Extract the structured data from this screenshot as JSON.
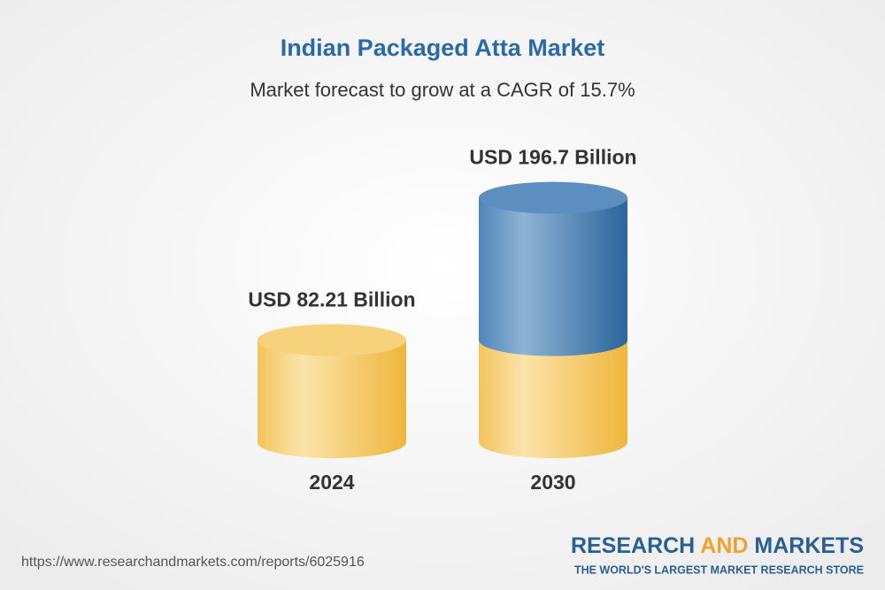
{
  "chart_data": {
    "type": "cylinder",
    "title": "Indian Packaged Atta Market",
    "subtitle": "Market forecast to grow at a CAGR of 15.7%",
    "categories": [
      "2024",
      "2030"
    ],
    "values": [
      82.21,
      196.7
    ],
    "value_labels": [
      "USD 82.21 Billion",
      "USD 196.7 Billion"
    ],
    "colors": [
      "#f0bb45",
      "#2d6aa2"
    ]
  },
  "footer": {
    "url": "https://www.researchandmarkets.com/reports/6025916",
    "logo": {
      "words": [
        "RESEARCH",
        "AND",
        "MARKETS"
      ],
      "tagline": "THE WORLD'S LARGEST MARKET RESEARCH STORE"
    }
  }
}
